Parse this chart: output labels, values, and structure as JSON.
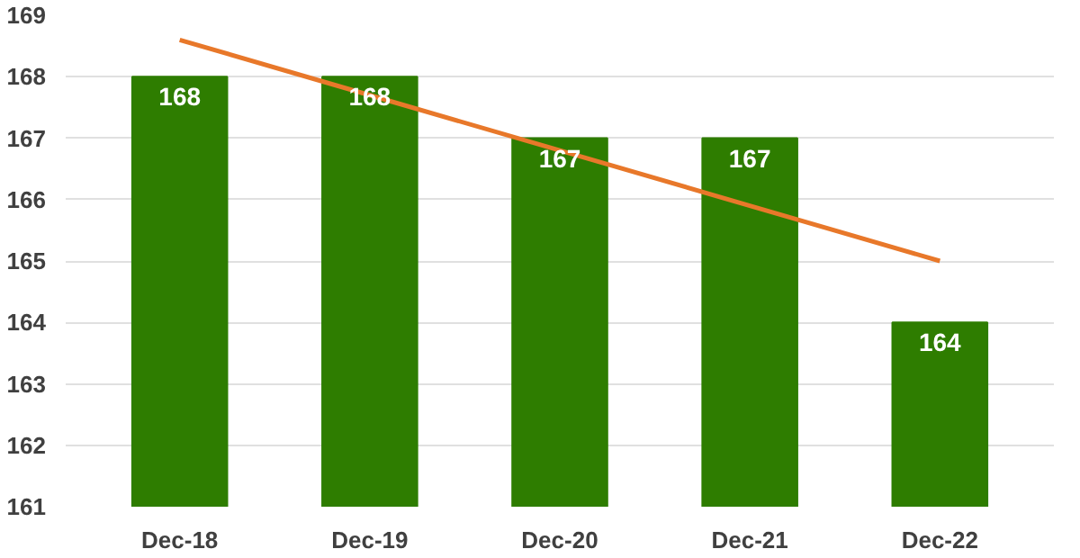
{
  "chart_data": {
    "type": "bar",
    "categories": [
      "Dec-18",
      "Dec-19",
      "Dec-20",
      "Dec-21",
      "Dec-22"
    ],
    "series": [
      {
        "color": "#2e7d00",
        "values": [
          168,
          168,
          167,
          167,
          164
        ],
        "value_labels": [
          "168",
          "168",
          "167",
          "167",
          "164"
        ]
      },
      {
        "type": "line",
        "color": "#e8782a",
        "values": [
          168.6,
          167.7,
          166.8,
          165.9,
          165.0
        ]
      }
    ],
    "ylim": [
      161,
      169
    ],
    "yticks": [
      161,
      162,
      163,
      164,
      165,
      166,
      167,
      168,
      169
    ],
    "grid": "y"
  }
}
